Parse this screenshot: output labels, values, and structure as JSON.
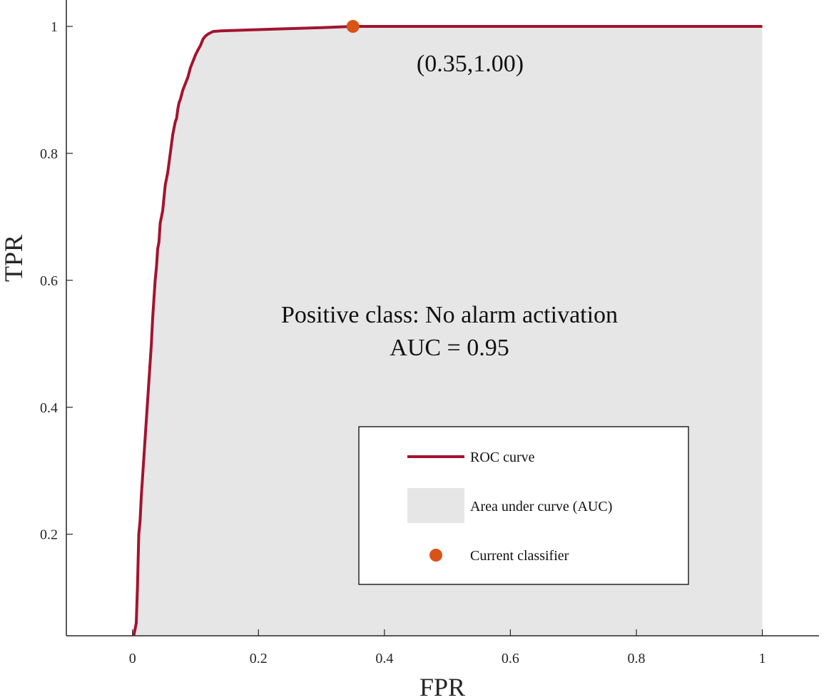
{
  "chart_data": {
    "type": "line",
    "title": "",
    "xlabel": "FPR",
    "ylabel": "TPR",
    "xlim": [
      -0.105,
      1.09
    ],
    "ylim": [
      0.04,
      1.0
    ],
    "x_ticks": [
      0,
      0.2,
      0.4,
      0.6,
      0.8,
      1
    ],
    "x_tick_labels": [
      "0",
      "0.2",
      "0.4",
      "0.6",
      "0.8",
      "1"
    ],
    "y_ticks": [
      0.2,
      0.4,
      0.6,
      0.8,
      1
    ],
    "y_tick_labels": [
      "0.2",
      "0.4",
      "0.6",
      "0.8",
      "1"
    ],
    "grid": false,
    "series": [
      {
        "name": "ROC curve",
        "color": "#A2142F",
        "x": [
          0.002,
          0.006,
          0.008,
          0.01,
          0.012,
          0.014,
          0.016,
          0.018,
          0.02,
          0.022,
          0.024,
          0.026,
          0.028,
          0.03,
          0.032,
          0.034,
          0.036,
          0.038,
          0.04,
          0.042,
          0.044,
          0.046,
          0.048,
          0.05,
          0.052,
          0.054,
          0.056,
          0.06,
          0.064,
          0.068,
          0.07,
          0.072,
          0.074,
          0.076,
          0.08,
          0.084,
          0.088,
          0.092,
          0.096,
          0.1,
          0.104,
          0.108,
          0.112,
          0.116,
          0.12,
          0.124,
          0.128,
          0.14,
          0.2,
          0.3,
          0.35,
          0.5,
          0.7,
          1.0
        ],
        "y": [
          0.04,
          0.06,
          0.12,
          0.2,
          0.22,
          0.26,
          0.29,
          0.32,
          0.35,
          0.38,
          0.41,
          0.44,
          0.47,
          0.5,
          0.54,
          0.57,
          0.6,
          0.62,
          0.65,
          0.66,
          0.69,
          0.7,
          0.71,
          0.73,
          0.75,
          0.76,
          0.77,
          0.8,
          0.83,
          0.85,
          0.855,
          0.87,
          0.88,
          0.885,
          0.9,
          0.91,
          0.92,
          0.935,
          0.945,
          0.955,
          0.963,
          0.97,
          0.98,
          0.985,
          0.988,
          0.99,
          0.992,
          0.993,
          0.995,
          0.998,
          1.0,
          1.0,
          1.0,
          1.0
        ]
      }
    ],
    "auc_fill_color": "#E6E6E6",
    "current_classifier": {
      "x": 0.35,
      "y": 1.0,
      "color": "#D95319"
    },
    "annotations": {
      "point_label": "(0.35,1.00)",
      "positive_class": "Positive class: No alarm activation",
      "auc": "AUC = 0.95"
    },
    "legend": {
      "position": "lower-right",
      "entries": [
        "ROC curve",
        "Area under curve (AUC)",
        "Current classifier"
      ]
    }
  }
}
